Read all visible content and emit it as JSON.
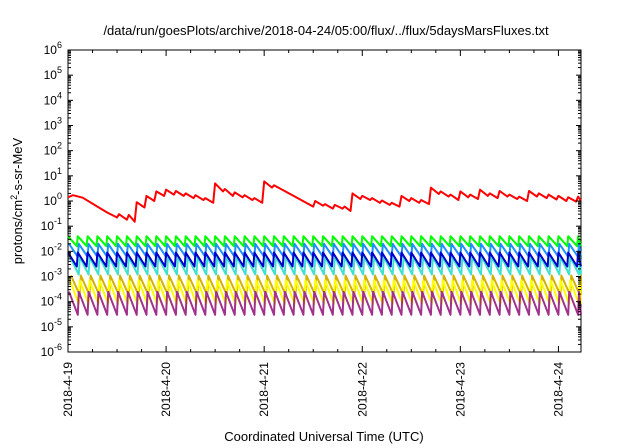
{
  "chart_data": {
    "type": "line",
    "title": "/data/run/goesPlots/archive/2018-04-24/05:00/flux/../flux/5daysMarsFluxes.txt",
    "xlabel": "Coordinated Universal Time (UTC)",
    "ylabel": "protons/cm2-s-sr-MeV",
    "ylabel_parts": {
      "pre": "protons/cm",
      "sup": "2",
      "post": "-s-sr-MeV"
    },
    "yscale": "log",
    "ylim": [
      1e-06,
      1000000.0
    ],
    "yticks": [
      {
        "base": "10",
        "exp": "-6",
        "value": -6
      },
      {
        "base": "10",
        "exp": "-5",
        "value": -5
      },
      {
        "base": "10",
        "exp": "-4",
        "value": -4
      },
      {
        "base": "10",
        "exp": "-3",
        "value": -3
      },
      {
        "base": "10",
        "exp": "-2",
        "value": -2
      },
      {
        "base": "10",
        "exp": "-1",
        "value": -1
      },
      {
        "base": "10",
        "exp": "0",
        "value": 0
      },
      {
        "base": "10",
        "exp": "1",
        "value": 1
      },
      {
        "base": "10",
        "exp": "2",
        "value": 2
      },
      {
        "base": "10",
        "exp": "3",
        "value": 3
      },
      {
        "base": "10",
        "exp": "4",
        "value": 4
      },
      {
        "base": "10",
        "exp": "5",
        "value": 5
      },
      {
        "base": "10",
        "exp": "6",
        "value": 6
      }
    ],
    "xlim": [
      "2018-04-19",
      "2018-04-24 05:00"
    ],
    "xticks": [
      {
        "label": "2018-4-19",
        "day": 0
      },
      {
        "label": "2018-4-20",
        "day": 1
      },
      {
        "label": "2018-4-21",
        "day": 2
      },
      {
        "label": "2018-4-22",
        "day": 3
      },
      {
        "label": "2018-4-23",
        "day": 4
      },
      {
        "label": "2018-4-24",
        "day": 5
      }
    ],
    "grid": false,
    "legend": "none",
    "series": [
      {
        "color": "#ff0000",
        "style": "line",
        "points": [
          [
            0.0,
            1.4
          ],
          [
            0.05,
            1.7
          ],
          [
            0.15,
            1.35
          ],
          [
            0.3,
            0.6
          ],
          [
            0.4,
            0.35
          ],
          [
            0.5,
            0.22
          ],
          [
            0.52,
            0.3
          ],
          [
            0.6,
            0.18
          ],
          [
            0.62,
            0.28
          ],
          [
            0.68,
            0.15
          ],
          [
            0.7,
            0.9
          ],
          [
            0.78,
            0.55
          ],
          [
            0.8,
            1.6
          ],
          [
            0.88,
            1.0
          ],
          [
            0.9,
            2.4
          ],
          [
            0.98,
            1.6
          ],
          [
            1.0,
            2.8
          ],
          [
            1.08,
            1.8
          ],
          [
            1.1,
            2.5
          ],
          [
            1.18,
            1.6
          ],
          [
            1.2,
            2.0
          ],
          [
            1.28,
            1.3
          ],
          [
            1.3,
            1.7
          ],
          [
            1.38,
            1.1
          ],
          [
            1.4,
            1.3
          ],
          [
            1.48,
            0.85
          ],
          [
            1.5,
            5.0
          ],
          [
            1.58,
            2.4
          ],
          [
            1.6,
            3.0
          ],
          [
            1.68,
            1.6
          ],
          [
            1.7,
            2.2
          ],
          [
            1.78,
            1.4
          ],
          [
            1.8,
            1.7
          ],
          [
            1.88,
            1.1
          ],
          [
            1.9,
            1.3
          ],
          [
            1.98,
            0.85
          ],
          [
            2.0,
            6.0
          ],
          [
            2.08,
            3.4
          ],
          [
            2.1,
            4.2
          ],
          [
            2.3,
            1.6
          ],
          [
            2.5,
            0.6
          ],
          [
            2.52,
            1.0
          ],
          [
            2.6,
            0.65
          ],
          [
            2.62,
            0.75
          ],
          [
            2.7,
            0.5
          ],
          [
            2.72,
            0.7
          ],
          [
            2.8,
            0.5
          ],
          [
            2.82,
            0.6
          ],
          [
            2.88,
            0.4
          ],
          [
            2.9,
            2.0
          ],
          [
            2.98,
            1.2
          ],
          [
            3.0,
            1.6
          ],
          [
            3.08,
            1.1
          ],
          [
            3.1,
            1.3
          ],
          [
            3.18,
            0.85
          ],
          [
            3.2,
            1.05
          ],
          [
            3.28,
            0.7
          ],
          [
            3.3,
            0.85
          ],
          [
            3.38,
            0.6
          ],
          [
            3.4,
            1.6
          ],
          [
            3.48,
            1.0
          ],
          [
            3.5,
            1.3
          ],
          [
            3.58,
            0.85
          ],
          [
            3.6,
            1.1
          ],
          [
            3.68,
            0.75
          ],
          [
            3.7,
            3.4
          ],
          [
            3.78,
            1.9
          ],
          [
            3.8,
            2.4
          ],
          [
            3.88,
            1.5
          ],
          [
            3.9,
            1.8
          ],
          [
            3.98,
            1.1
          ],
          [
            4.0,
            2.4
          ],
          [
            4.08,
            1.4
          ],
          [
            4.1,
            1.8
          ],
          [
            4.18,
            1.2
          ],
          [
            4.2,
            2.8
          ],
          [
            4.28,
            1.6
          ],
          [
            4.3,
            2.0
          ],
          [
            4.38,
            1.3
          ],
          [
            4.4,
            2.5
          ],
          [
            4.48,
            1.5
          ],
          [
            4.5,
            1.8
          ],
          [
            4.58,
            1.2
          ],
          [
            4.6,
            1.5
          ],
          [
            4.68,
            1.0
          ],
          [
            4.7,
            2.5
          ],
          [
            4.78,
            1.5
          ],
          [
            4.8,
            2.0
          ],
          [
            4.88,
            1.3
          ],
          [
            4.9,
            1.8
          ],
          [
            4.98,
            1.15
          ],
          [
            5.0,
            1.6
          ],
          [
            5.08,
            1.0
          ],
          [
            5.1,
            1.4
          ],
          [
            5.18,
            0.95
          ],
          [
            5.2,
            1.5
          ],
          [
            5.23,
            1.0
          ]
        ]
      },
      {
        "color": "#00ff00",
        "style": "saw",
        "period": 0.1,
        "base": 0.016,
        "peak": 0.04,
        "offset": 0.0
      },
      {
        "color": "#1e90ff",
        "style": "saw",
        "period": 0.1,
        "base": 0.006,
        "peak": 0.02,
        "offset": 0.01
      },
      {
        "color": "#40e0d0",
        "style": "saw",
        "period": 0.1,
        "base": 0.0012,
        "peak": 0.006,
        "offset": 0.02
      },
      {
        "color": "#0000cd",
        "style": "saw",
        "period": 0.1,
        "base": 0.0025,
        "peak": 0.009,
        "offset": 0.0
      },
      {
        "color": "#d4b000",
        "style": "saw",
        "period": 0.1,
        "base": 0.00018,
        "peak": 0.0011,
        "offset": 0.03
      },
      {
        "color": "#ffff00",
        "style": "saw",
        "period": 0.1,
        "base": 8e-05,
        "peak": 0.0007,
        "offset": 0.02
      },
      {
        "color": "#a0328c",
        "style": "saw",
        "period": 0.1,
        "base": 3e-05,
        "peak": 0.00025,
        "offset": 0.01
      }
    ]
  }
}
